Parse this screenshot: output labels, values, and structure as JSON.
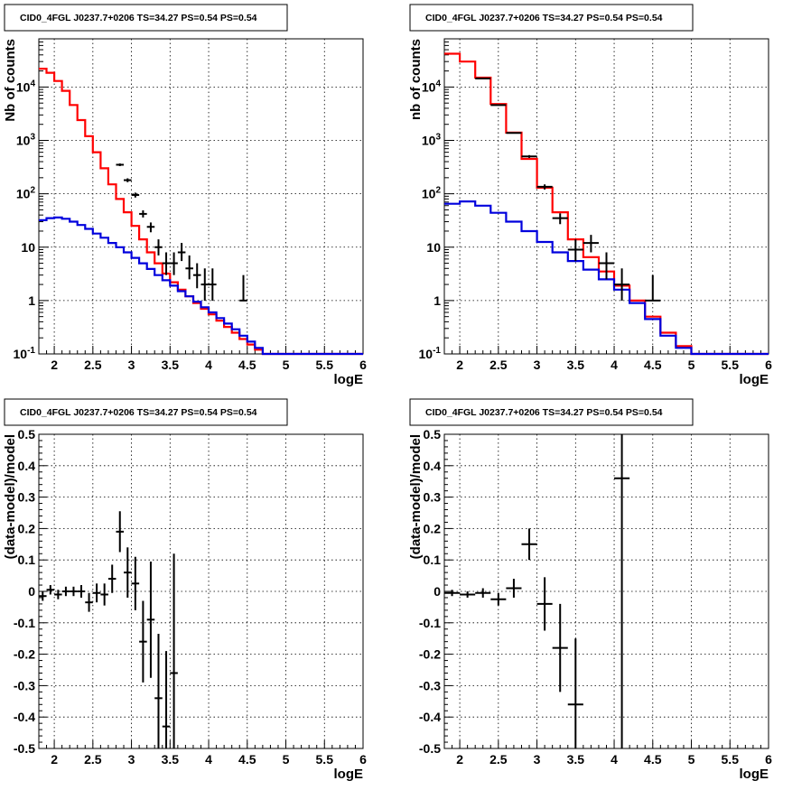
{
  "chart_data": [
    {
      "type": "line",
      "panel": "top-left",
      "title": "CID0_4FGL J0237.7+0206 TS=34.27 PS=0.54 PS=0.54",
      "xlabel": "logE",
      "ylabel": "Nb of counts",
      "xlim": [
        1.8,
        6
      ],
      "ylim": [
        0.1,
        80000
      ],
      "yscale": "log",
      "grid": true,
      "x_ticks": [
        "2",
        "2.5",
        "3",
        "3.5",
        "4",
        "4.5",
        "5",
        "5.5",
        "6"
      ],
      "y_ticks": [
        "10^-1",
        "1",
        "10",
        "10^2",
        "10^3",
        "10^4"
      ],
      "series": [
        {
          "color": "#ff0000",
          "style": "step",
          "bin_width": 0.1,
          "x": [
            1.85,
            1.95,
            2.05,
            2.15,
            2.25,
            2.35,
            2.45,
            2.55,
            2.65,
            2.75,
            2.85,
            2.95,
            3.05,
            3.15,
            3.25,
            3.35,
            3.45,
            3.55,
            3.65,
            3.75,
            3.85,
            3.95,
            4.05,
            4.15,
            4.25,
            4.35,
            4.45,
            4.55,
            4.65,
            4.75,
            4.85,
            4.95,
            5.05,
            5.15,
            5.25,
            5.35,
            5.45,
            5.55,
            5.65,
            5.75,
            5.85,
            5.95
          ],
          "y": [
            22000,
            18500,
            13000,
            8500,
            4600,
            2400,
            1200,
            600,
            300,
            150,
            80,
            45,
            25,
            14,
            8,
            5,
            3.2,
            2.2,
            1.6,
            1.2,
            0.9,
            0.7,
            0.55,
            0.42,
            0.32,
            0.25,
            0.19,
            0.15,
            0.12,
            0.1,
            0.1,
            0.1,
            0.1,
            0.1,
            0.1,
            0.1,
            0.1,
            0.1,
            0.1,
            0.1,
            0.1,
            0.1
          ]
        },
        {
          "color": "#0000dd",
          "style": "step",
          "bin_width": 0.1,
          "x": [
            1.85,
            1.95,
            2.05,
            2.15,
            2.25,
            2.35,
            2.45,
            2.55,
            2.65,
            2.75,
            2.85,
            2.95,
            3.05,
            3.15,
            3.25,
            3.35,
            3.45,
            3.55,
            3.65,
            3.75,
            3.85,
            3.95,
            4.05,
            4.15,
            4.25,
            4.35,
            4.45,
            4.55,
            4.65,
            4.75,
            4.85,
            4.95,
            5.05,
            5.15,
            5.25,
            5.35,
            5.45,
            5.55,
            5.65,
            5.75,
            5.85,
            5.95
          ],
          "y": [
            32,
            35,
            36,
            34,
            30,
            26,
            22,
            18,
            15,
            12,
            10,
            8,
            6.3,
            5,
            3.9,
            3.0,
            2.4,
            1.9,
            1.5,
            1.2,
            0.95,
            0.75,
            0.6,
            0.47,
            0.37,
            0.29,
            0.22,
            0.17,
            0.13,
            0.1,
            0.1,
            0.1,
            0.1,
            0.1,
            0.1,
            0.1,
            0.1,
            0.1,
            0.1,
            0.1,
            0.1,
            0.1
          ]
        }
      ],
      "points": {
        "color": "#000000",
        "x": [
          2.85,
          2.95,
          3.05,
          3.15,
          3.25,
          3.35,
          3.45,
          3.55,
          3.65,
          3.75,
          3.85,
          3.95,
          4.05,
          4.45
        ],
        "y": [
          350,
          180,
          95,
          42,
          24,
          10,
          5,
          5,
          8,
          4,
          3,
          2,
          2,
          1
        ],
        "yerr_low": [
          330,
          165,
          85,
          36,
          19,
          7,
          3,
          3,
          5.5,
          2.5,
          1.7,
          0.99,
          0.99,
          0.99
        ],
        "yerr_high": [
          370,
          195,
          105,
          49,
          29,
          14,
          8,
          8,
          12,
          7,
          5,
          4,
          4,
          3
        ],
        "xerr": 0.05
      }
    },
    {
      "type": "line",
      "panel": "top-right",
      "title": "CID0_4FGL J0237.7+0206 TS=34.27 PS=0.54 PS=0.54",
      "xlabel": "logE",
      "ylabel": "nb of counts",
      "xlim": [
        1.8,
        6
      ],
      "ylim": [
        0.1,
        80000
      ],
      "yscale": "log",
      "grid": true,
      "x_ticks": [
        "2",
        "2.5",
        "3",
        "3.5",
        "4",
        "4.5",
        "5",
        "5.5",
        "6"
      ],
      "y_ticks": [
        "10^-1",
        "1",
        "10",
        "10^2",
        "10^3",
        "10^4"
      ],
      "series": [
        {
          "color": "#ff0000",
          "style": "step",
          "bin_width": 0.2,
          "x": [
            1.9,
            2.1,
            2.3,
            2.5,
            2.7,
            2.9,
            3.1,
            3.3,
            3.5,
            3.7,
            3.9,
            4.1,
            4.3,
            4.5,
            4.7,
            4.9,
            5.1,
            5.3,
            5.5,
            5.7,
            5.9
          ],
          "y": [
            42000,
            30000,
            15000,
            4800,
            1400,
            450,
            130,
            45,
            14,
            6.5,
            3.5,
            1.9,
            1.0,
            0.5,
            0.25,
            0.14,
            0.1,
            0.1,
            0.1,
            0.1,
            0.1
          ]
        },
        {
          "color": "#0000dd",
          "style": "step",
          "bin_width": 0.2,
          "x": [
            1.9,
            2.1,
            2.3,
            2.5,
            2.7,
            2.9,
            3.1,
            3.3,
            3.5,
            3.7,
            3.9,
            4.1,
            4.3,
            4.5,
            4.7,
            4.9,
            5.1,
            5.3,
            5.5,
            5.7,
            5.9
          ],
          "y": [
            65,
            72,
            60,
            44,
            30,
            20,
            12.5,
            8,
            5.5,
            3.8,
            2.5,
            1.6,
            0.9,
            0.45,
            0.22,
            0.13,
            0.1,
            0.1,
            0.1,
            0.1,
            0.1
          ]
        }
      ],
      "points": {
        "color": "#000000",
        "x": [
          2.3,
          2.5,
          2.7,
          2.9,
          3.1,
          3.3,
          3.5,
          3.7,
          3.9,
          4.1,
          4.5
        ],
        "y": [
          14500,
          4600,
          1380,
          500,
          135,
          35,
          9,
          12,
          5,
          2,
          1
        ],
        "yerr_low": [
          14300,
          4500,
          1340,
          470,
          120,
          27,
          5.5,
          8,
          2.5,
          0.99,
          0.99
        ],
        "yerr_high": [
          14700,
          4700,
          1420,
          530,
          150,
          43,
          14,
          17,
          8,
          4,
          3
        ],
        "xerr": 0.1
      }
    },
    {
      "type": "scatter",
      "panel": "bottom-left",
      "title": "CID0_4FGL J0237.7+0206 TS=34.27 PS=0.54 PS=0.54",
      "xlabel": "logE",
      "ylabel": "(data-model)/model",
      "xlim": [
        1.8,
        6
      ],
      "ylim": [
        -0.5,
        0.5
      ],
      "grid": true,
      "x_ticks": [
        "2",
        "2.5",
        "3",
        "3.5",
        "4",
        "4.5",
        "5",
        "5.5",
        "6"
      ],
      "y_ticks": [
        "-0.5",
        "-0.4",
        "-0.3",
        "-0.2",
        "-0.1",
        "0",
        "0.1",
        "0.2",
        "0.3",
        "0.4",
        "0.5"
      ],
      "points": {
        "color": "#000000",
        "x": [
          1.85,
          1.95,
          2.05,
          2.15,
          2.25,
          2.35,
          2.45,
          2.55,
          2.65,
          2.75,
          2.85,
          2.95,
          3.05,
          3.15,
          3.25,
          3.35,
          3.45,
          3.55
        ],
        "y": [
          -0.015,
          0.005,
          -0.01,
          0.0,
          0.0,
          0.0,
          -0.035,
          -0.005,
          -0.01,
          0.04,
          0.19,
          0.06,
          0.025,
          -0.16,
          -0.09,
          -0.34,
          -0.43,
          -0.26
        ],
        "yerr": [
          0.015,
          0.015,
          0.015,
          0.015,
          0.015,
          0.02,
          0.03,
          0.03,
          0.035,
          0.045,
          0.065,
          0.08,
          0.085,
          0.13,
          0.185,
          0.205,
          0.24,
          0.38
        ],
        "xerr": 0.05
      }
    },
    {
      "type": "scatter",
      "panel": "bottom-right",
      "title": "CID0_4FGL J0237.7+0206 TS=34.27 PS=0.54 PS=0.54",
      "xlabel": "logE",
      "ylabel": "(data-model)/model",
      "xlim": [
        1.8,
        6
      ],
      "ylim": [
        -0.5,
        0.5
      ],
      "grid": true,
      "x_ticks": [
        "2",
        "2.5",
        "3",
        "3.5",
        "4",
        "4.5",
        "5",
        "5.5",
        "6"
      ],
      "y_ticks": [
        "-0.5",
        "-0.4",
        "-0.3",
        "-0.2",
        "-0.1",
        "0",
        "0.1",
        "0.2",
        "0.3",
        "0.4",
        "0.5"
      ],
      "points": {
        "color": "#000000",
        "x": [
          1.9,
          2.1,
          2.3,
          2.5,
          2.7,
          2.9,
          3.1,
          3.3,
          3.5,
          4.1
        ],
        "y": [
          -0.005,
          -0.01,
          -0.005,
          -0.025,
          0.01,
          0.15,
          -0.04,
          -0.18,
          -0.36,
          0.36
        ],
        "yerr": [
          0.01,
          0.01,
          0.015,
          0.02,
          0.03,
          0.05,
          0.085,
          0.14,
          0.21,
          1.2
        ],
        "xerr": 0.1
      }
    }
  ]
}
